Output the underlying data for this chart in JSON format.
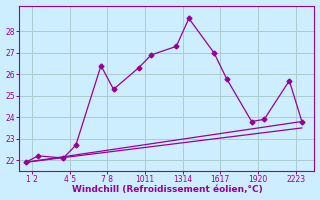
{
  "x_tick_positions": [
    1.5,
    4.5,
    7.5,
    10.5,
    13.5,
    16.5,
    19.5,
    22.5
  ],
  "x_tick_labels": [
    "1 2",
    "4 5",
    "7 8",
    "1011",
    "1314",
    "1617",
    "1920",
    "2223"
  ],
  "line1_x": [
    1,
    2,
    4,
    5,
    7,
    8,
    10,
    11,
    13,
    14,
    16,
    17,
    19,
    20,
    22,
    23
  ],
  "line1_y": [
    21.9,
    22.2,
    22.1,
    22.7,
    26.4,
    25.3,
    26.3,
    26.9,
    27.3,
    28.6,
    27.0,
    25.8,
    23.8,
    23.9,
    25.7,
    23.8
  ],
  "line2_x": [
    1,
    23
  ],
  "line2_y": [
    21.9,
    23.8
  ],
  "line3_x": [
    1,
    23
  ],
  "line3_y": [
    21.9,
    23.5
  ],
  "line_color": "#990099",
  "bg_color": "#cceeff",
  "grid_color": "#aacccc",
  "ylabel_ticks": [
    22,
    23,
    24,
    25,
    26,
    27,
    28
  ],
  "ylim": [
    21.5,
    29.2
  ],
  "xlim": [
    0.5,
    24.0
  ],
  "xlabel": "Windchill (Refroidissement éolien,°C)",
  "marker": "D",
  "markersize": 2.5,
  "linewidth": 0.9
}
